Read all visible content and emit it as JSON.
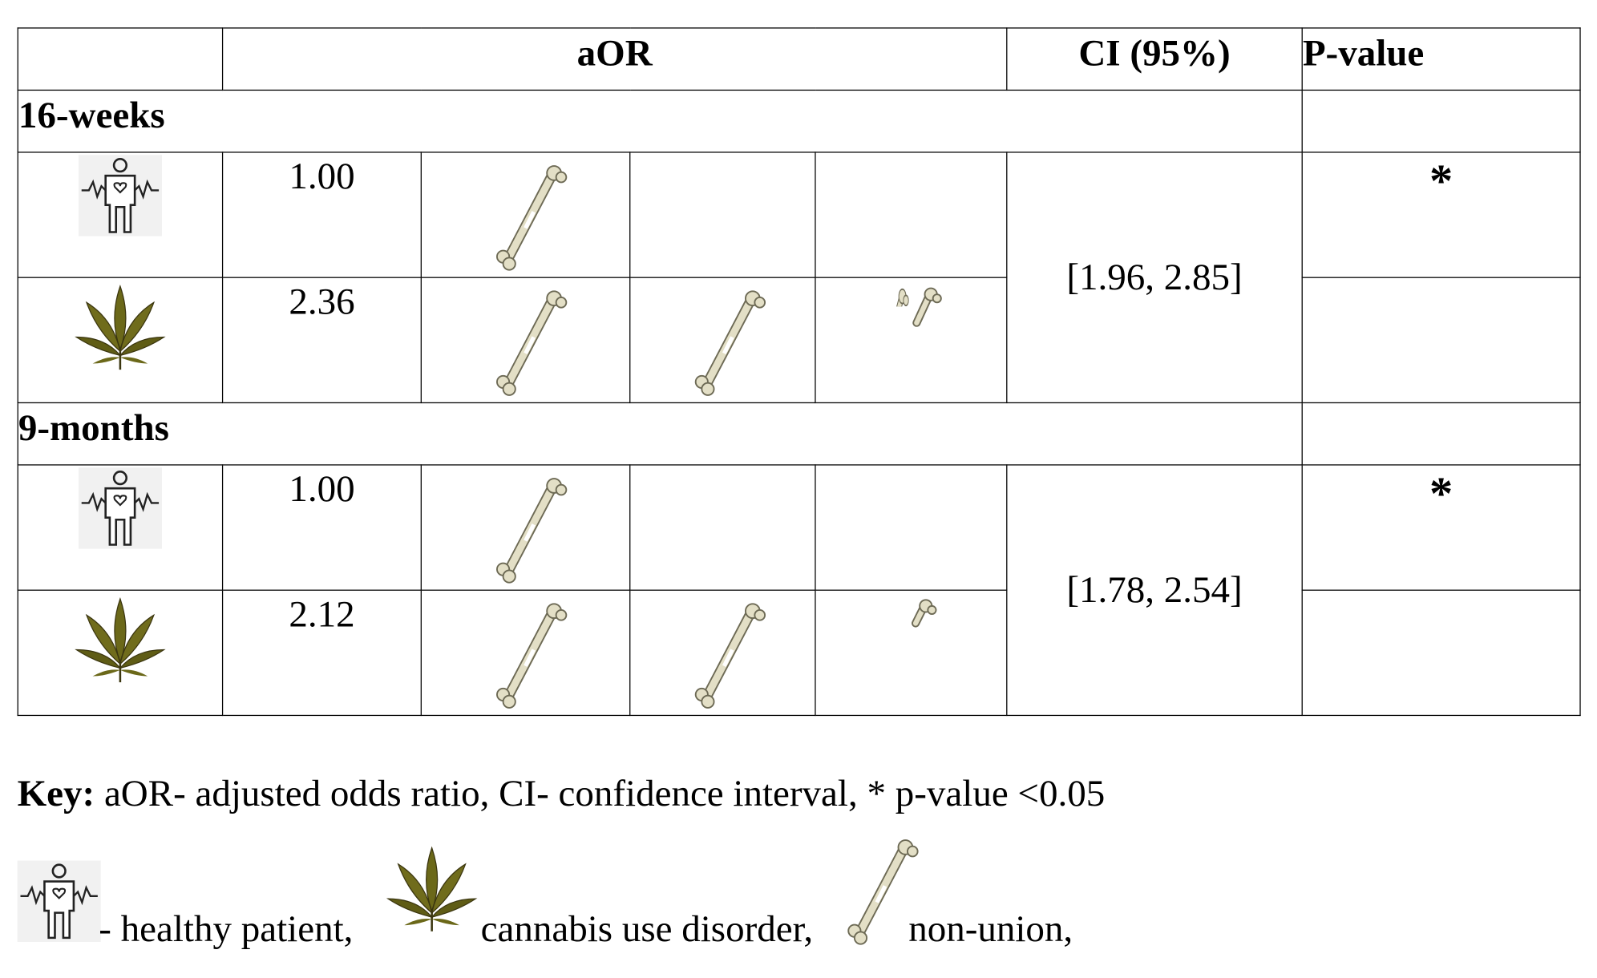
{
  "table": {
    "headers": {
      "empty": "",
      "aor": "aOR",
      "ci": "CI (95%)",
      "pvalue": "P-value"
    },
    "sections": [
      {
        "label": "16-weeks",
        "rows": [
          {
            "group": "healthy patient",
            "aor": "1.00",
            "bones": 1.0,
            "pvalue": "*"
          },
          {
            "group": "cannabis use disorder",
            "aor": "2.36",
            "bones": 2.36,
            "pvalue": ""
          }
        ],
        "ci": "[1.96, 2.85]"
      },
      {
        "label": "9-months",
        "rows": [
          {
            "group": "healthy patient",
            "aor": "1.00",
            "bones": 1.0,
            "pvalue": "*"
          },
          {
            "group": "cannabis use disorder",
            "aor": "2.12",
            "bones": 2.12,
            "pvalue": ""
          }
        ],
        "ci": "[1.78, 2.54]"
      }
    ]
  },
  "key": {
    "label": "Key:",
    "text": " aOR- adjusted odds ratio, CI- confidence interval, * p-value <0.05",
    "healthy": "- healthy patient,",
    "cannabis": "cannabis use disorder,",
    "nonunion": "non-union,"
  },
  "icons": {
    "healthy": "healthy-patient-icon",
    "cannabis": "cannabis-leaf-icon",
    "bone": "femur-bone-icon"
  }
}
